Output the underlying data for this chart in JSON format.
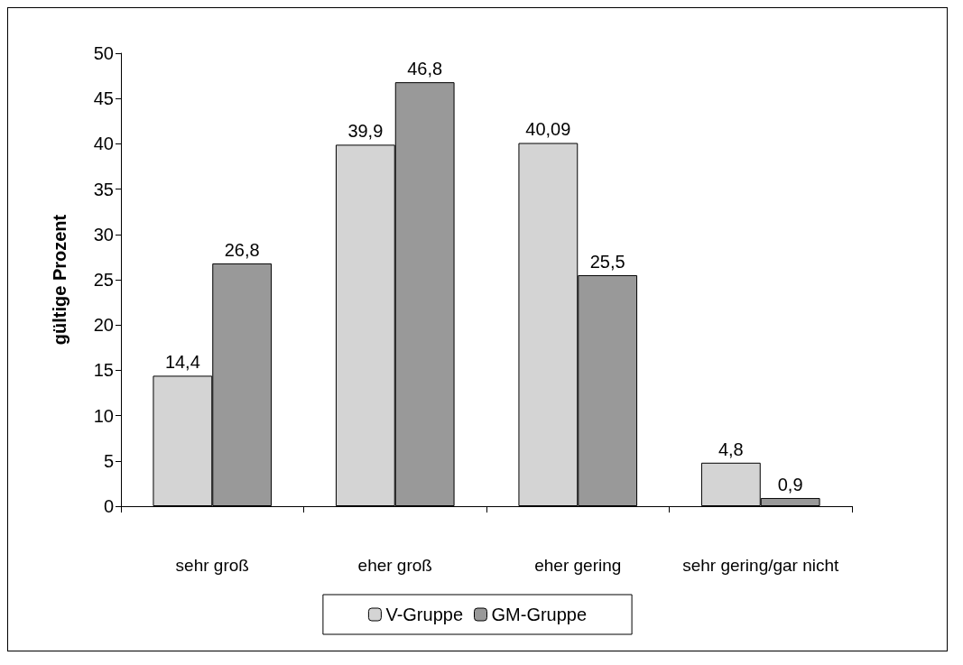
{
  "chart_data": {
    "type": "bar",
    "ylabel": "gültige Prozent",
    "categories": [
      "sehr groß",
      "eher groß",
      "eher gering",
      "sehr gering/gar nicht"
    ],
    "series": [
      {
        "name": "V-Gruppe",
        "color": "#d4d4d4",
        "values": [
          14.4,
          39.9,
          40.09,
          4.8
        ],
        "value_labels": [
          "14,4",
          "39,9",
          "40,09",
          "4,8"
        ]
      },
      {
        "name": "GM-Gruppe",
        "color": "#999999",
        "values": [
          26.8,
          46.8,
          25.5,
          0.9
        ],
        "value_labels": [
          "26,8",
          "46,8",
          "25,5",
          "0,9"
        ]
      }
    ],
    "ylim": [
      0,
      50
    ],
    "yticks": [
      0,
      5,
      10,
      15,
      20,
      25,
      30,
      35,
      40,
      45,
      50
    ],
    "grid": false,
    "legend": "bottom"
  }
}
